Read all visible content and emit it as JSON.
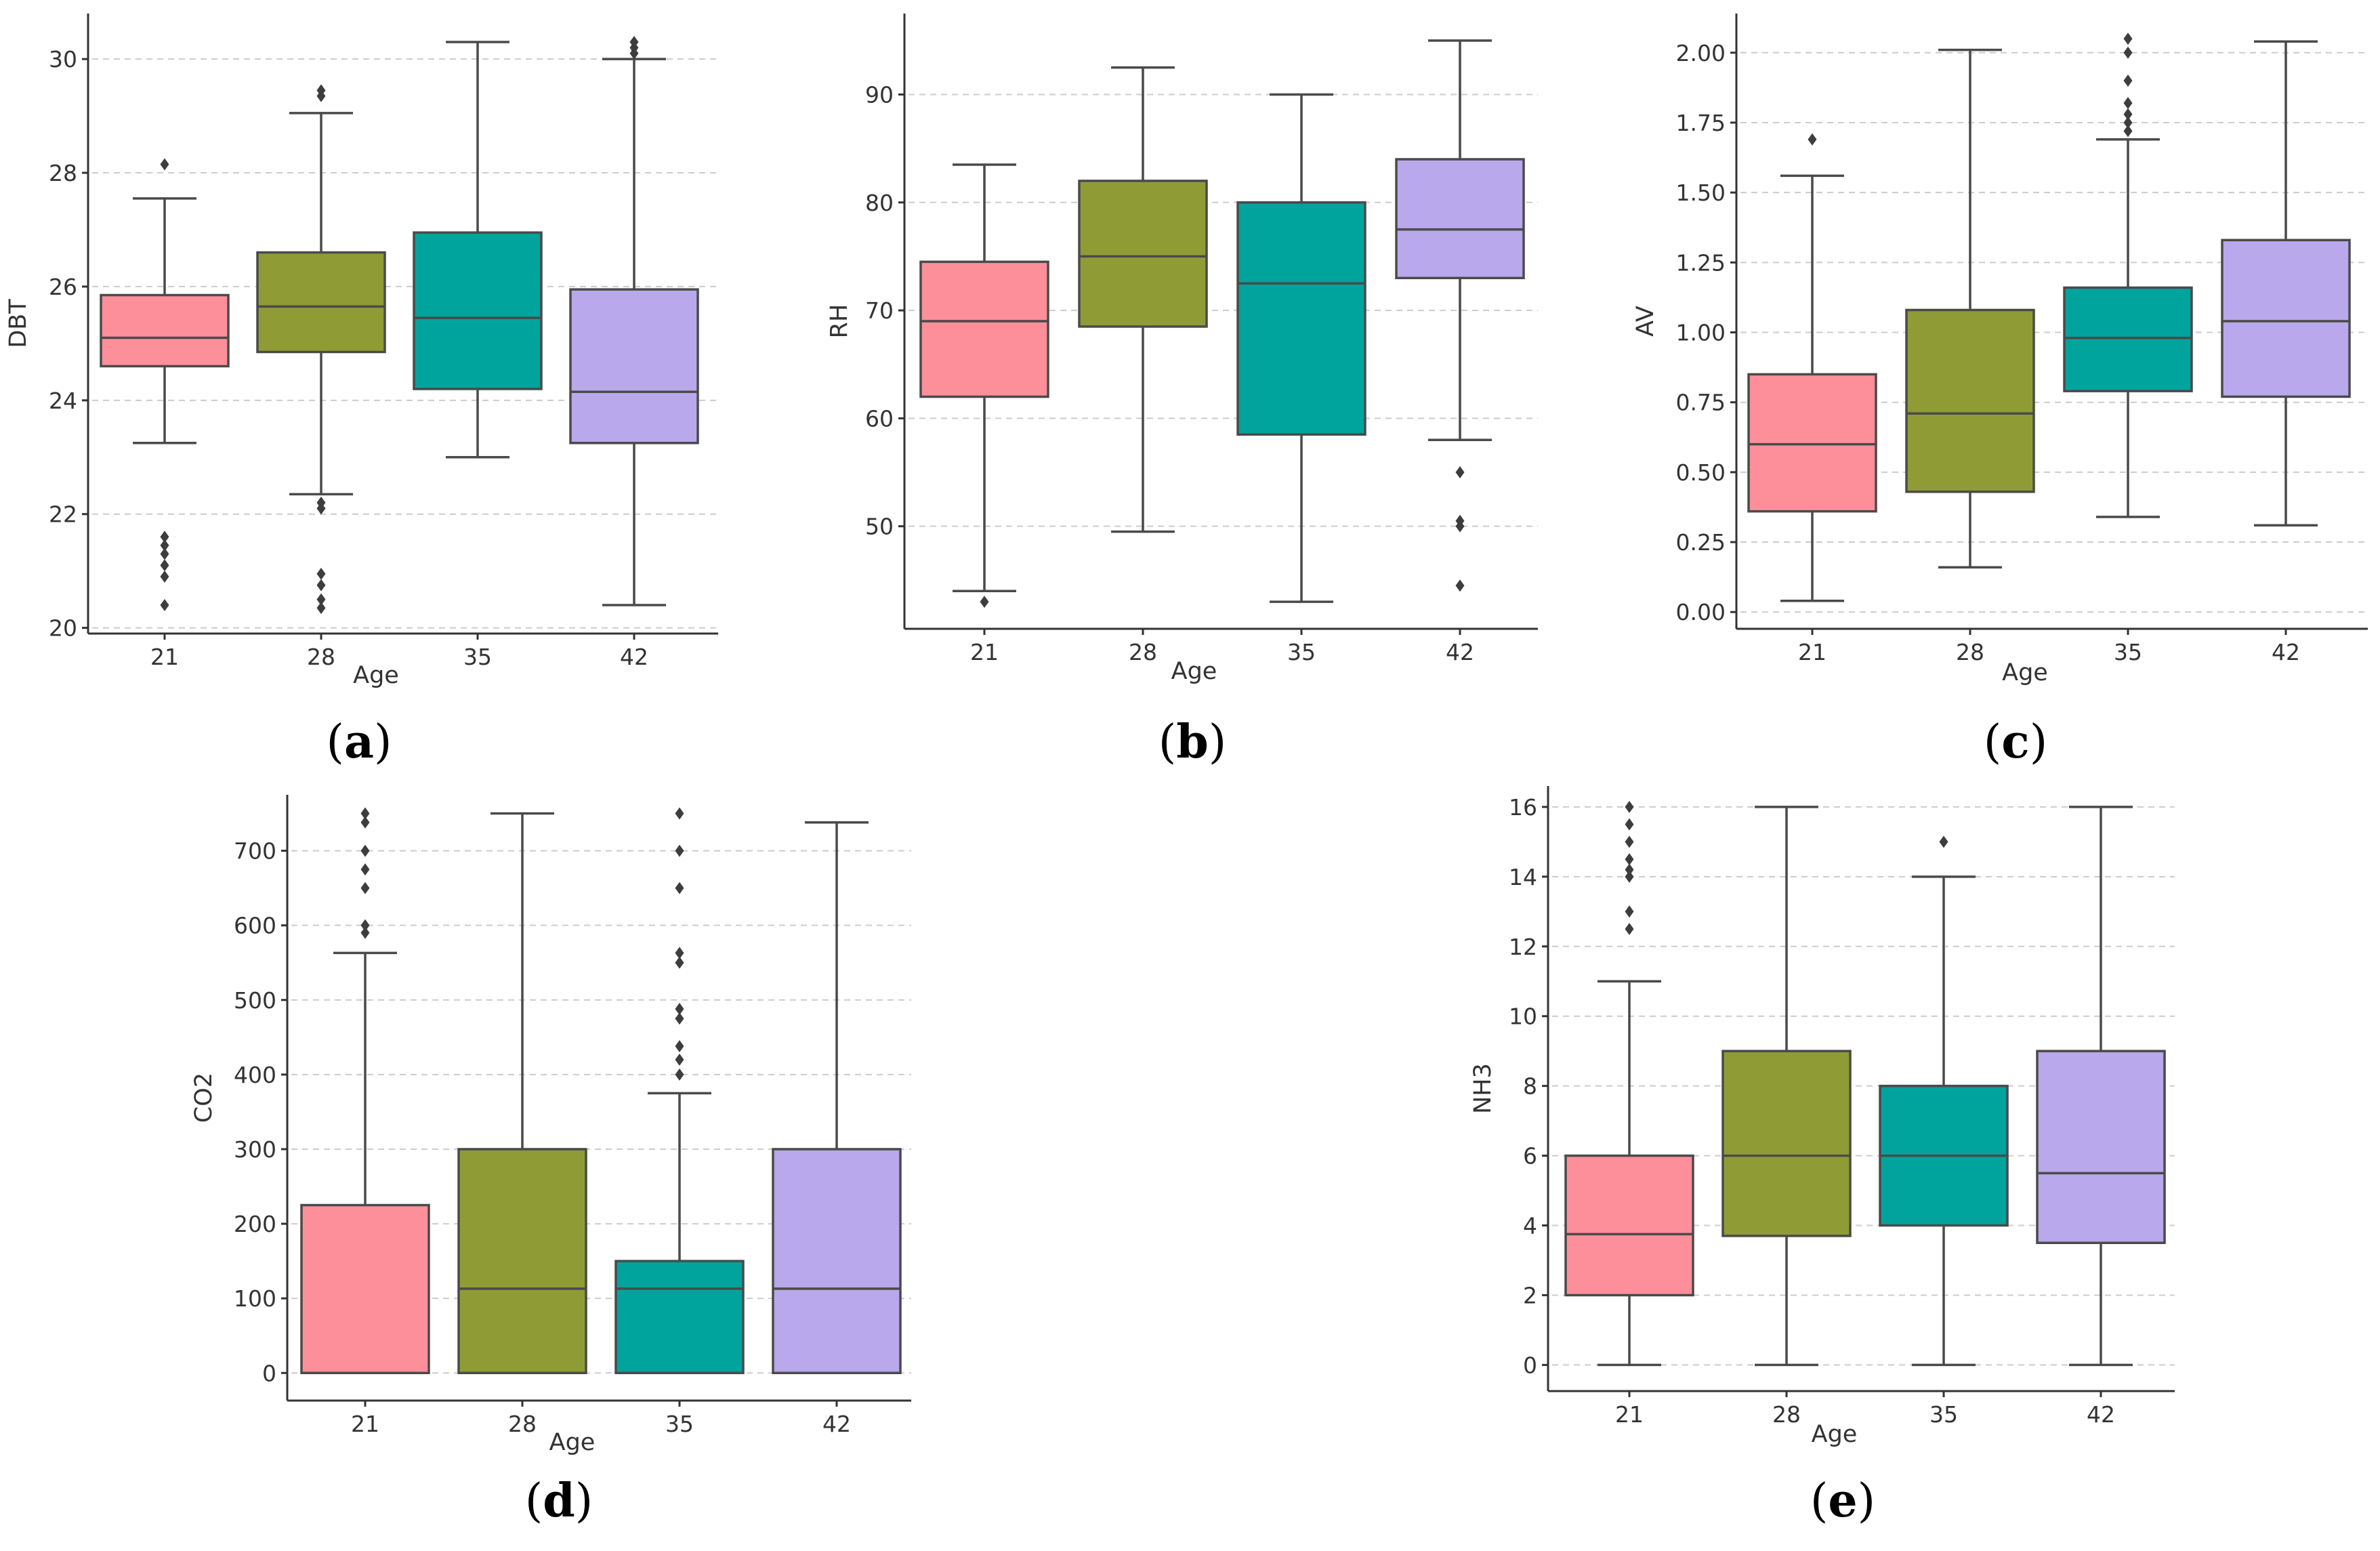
{
  "chart_data": [
    {
      "type": "box",
      "panel_label": "a",
      "xlabel": "Age",
      "ylabel": "DBT",
      "categories": [
        "21",
        "28",
        "35",
        "42"
      ],
      "ylim": [
        19.9,
        30.8
      ],
      "yticks": [
        20,
        22,
        24,
        26,
        28,
        30
      ],
      "yticklabels": [
        "20",
        "22",
        "24",
        "26",
        "28",
        "30"
      ],
      "colors": [
        "#fc8f9a",
        "#8f9c35",
        "#00a49d",
        "#b9a8ec"
      ],
      "boxes": [
        {
          "whislo": 23.25,
          "q1": 24.6,
          "med": 25.1,
          "q3": 25.85,
          "whishi": 27.55,
          "fliers": [
            28.15,
            21.6,
            21.45,
            21.3,
            21.1,
            20.9,
            20.4
          ]
        },
        {
          "whislo": 22.35,
          "q1": 24.85,
          "med": 25.65,
          "q3": 26.6,
          "whishi": 29.05,
          "fliers": [
            29.45,
            29.35,
            22.2,
            22.1,
            20.95,
            20.75,
            20.5,
            20.35
          ]
        },
        {
          "whislo": 23.0,
          "q1": 24.2,
          "med": 25.45,
          "q3": 26.95,
          "whishi": 30.3,
          "fliers": []
        },
        {
          "whislo": 20.4,
          "q1": 23.25,
          "med": 24.15,
          "q3": 25.95,
          "whishi": 30.0,
          "fliers": [
            30.3,
            30.2,
            30.1
          ]
        }
      ]
    },
    {
      "type": "box",
      "panel_label": "b",
      "xlabel": "Age",
      "ylabel": "RH",
      "categories": [
        "21",
        "28",
        "35",
        "42"
      ],
      "ylim": [
        40.5,
        97.5
      ],
      "yticks": [
        50,
        60,
        70,
        80,
        90
      ],
      "yticklabels": [
        "50",
        "60",
        "70",
        "80",
        "90"
      ],
      "colors": [
        "#fc8f9a",
        "#8f9c35",
        "#00a49d",
        "#b9a8ec"
      ],
      "boxes": [
        {
          "whislo": 44.0,
          "q1": 62.0,
          "med": 69.0,
          "q3": 74.5,
          "whishi": 83.5,
          "fliers": [
            43.0
          ]
        },
        {
          "whislo": 49.5,
          "q1": 68.5,
          "med": 75.0,
          "q3": 82.0,
          "whishi": 92.5,
          "fliers": []
        },
        {
          "whislo": 43.0,
          "q1": 58.5,
          "med": 72.5,
          "q3": 80.0,
          "whishi": 90.0,
          "fliers": []
        },
        {
          "whislo": 58.0,
          "q1": 73.0,
          "med": 77.5,
          "q3": 84.0,
          "whishi": 95.0,
          "fliers": [
            55.0,
            50.5,
            50.0,
            44.5
          ]
        }
      ]
    },
    {
      "type": "box",
      "panel_label": "c",
      "xlabel": "Age",
      "ylabel": "AV",
      "categories": [
        "21",
        "28",
        "35",
        "42"
      ],
      "ylim": [
        -0.06,
        2.14
      ],
      "yticks": [
        0.0,
        0.25,
        0.5,
        0.75,
        1.0,
        1.25,
        1.5,
        1.75,
        2.0
      ],
      "yticklabels": [
        "0.00",
        "0.25",
        "0.50",
        "0.75",
        "1.00",
        "1.25",
        "1.50",
        "1.75",
        "2.00"
      ],
      "colors": [
        "#fc8f9a",
        "#8f9c35",
        "#00a49d",
        "#b9a8ec"
      ],
      "boxes": [
        {
          "whislo": 0.04,
          "q1": 0.36,
          "med": 0.6,
          "q3": 0.85,
          "whishi": 1.56,
          "fliers": [
            1.69
          ]
        },
        {
          "whislo": 0.16,
          "q1": 0.43,
          "med": 0.71,
          "q3": 1.08,
          "whishi": 2.01,
          "fliers": []
        },
        {
          "whislo": 0.34,
          "q1": 0.79,
          "med": 0.98,
          "q3": 1.16,
          "whishi": 1.69,
          "fliers": [
            2.05,
            2.0,
            1.9,
            1.82,
            1.78,
            1.75,
            1.72
          ]
        },
        {
          "whislo": 0.31,
          "q1": 0.77,
          "med": 1.04,
          "q3": 1.33,
          "whishi": 2.04,
          "fliers": []
        }
      ]
    },
    {
      "type": "box",
      "panel_label": "d",
      "xlabel": "Age",
      "ylabel": "CO2",
      "categories": [
        "21",
        "28",
        "35",
        "42"
      ],
      "ylim": [
        -37,
        775
      ],
      "yticks": [
        0,
        100,
        200,
        300,
        400,
        500,
        600,
        700
      ],
      "yticklabels": [
        "0",
        "100",
        "200",
        "300",
        "400",
        "500",
        "600",
        "700"
      ],
      "colors": [
        "#fc8f9a",
        "#8f9c35",
        "#00a49d",
        "#b9a8ec"
      ],
      "boxes": [
        {
          "whislo": 0,
          "q1": 0,
          "med": 0,
          "q3": 225,
          "whishi": 563,
          "fliers": [
            750,
            738,
            700,
            675,
            650,
            600,
            590
          ]
        },
        {
          "whislo": 0,
          "q1": 0,
          "med": 113,
          "q3": 300,
          "whishi": 750,
          "fliers": []
        },
        {
          "whislo": 0,
          "q1": 0,
          "med": 113,
          "q3": 150,
          "whishi": 375,
          "fliers": [
            750,
            700,
            650,
            563,
            550,
            488,
            475,
            438,
            420,
            400
          ]
        },
        {
          "whislo": 0,
          "q1": 0,
          "med": 113,
          "q3": 300,
          "whishi": 738,
          "fliers": []
        }
      ]
    },
    {
      "type": "box",
      "panel_label": "e",
      "xlabel": "Age",
      "ylabel": "NH3",
      "categories": [
        "21",
        "28",
        "35",
        "42"
      ],
      "ylim": [
        -0.75,
        16.6
      ],
      "yticks": [
        0,
        2,
        4,
        6,
        8,
        10,
        12,
        14,
        16
      ],
      "yticklabels": [
        "0",
        "2",
        "4",
        "6",
        "8",
        "10",
        "12",
        "14",
        "16"
      ],
      "colors": [
        "#fc8f9a",
        "#8f9c35",
        "#00a49d",
        "#b9a8ec"
      ],
      "boxes": [
        {
          "whislo": 0,
          "q1": 2.0,
          "med": 3.75,
          "q3": 6.0,
          "whishi": 11.0,
          "fliers": [
            16.0,
            15.5,
            15.0,
            14.5,
            14.2,
            14.0,
            13.0,
            12.5
          ]
        },
        {
          "whislo": 0,
          "q1": 3.7,
          "med": 6.0,
          "q3": 9.0,
          "whishi": 16.0,
          "fliers": []
        },
        {
          "whislo": 0,
          "q1": 4.0,
          "med": 6.0,
          "q3": 8.0,
          "whishi": 14.0,
          "fliers": [
            15.0
          ]
        },
        {
          "whislo": 0,
          "q1": 3.5,
          "med": 5.5,
          "q3": 9.0,
          "whishi": 16.0,
          "fliers": []
        }
      ]
    }
  ]
}
